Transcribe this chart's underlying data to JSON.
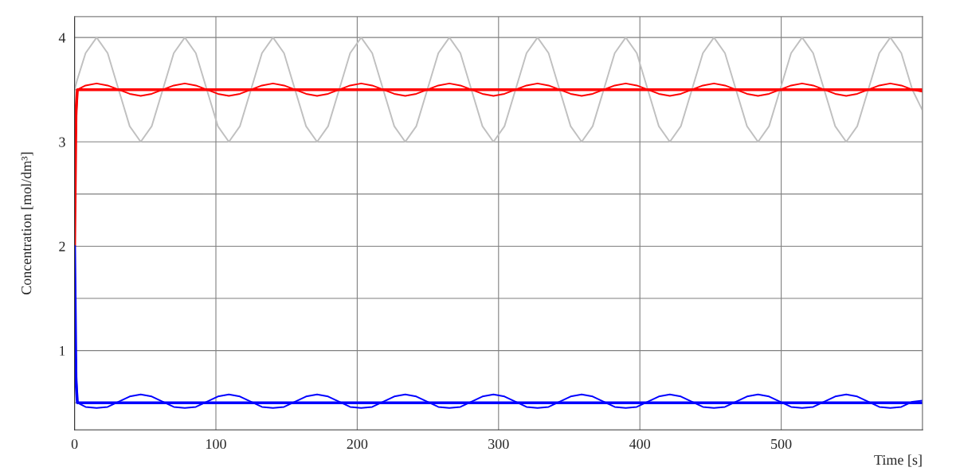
{
  "chart_data": {
    "type": "line",
    "xlabel": "Time [s]",
    "ylabel": "Concentration [mol/dm³]",
    "xlim": [
      0,
      600
    ],
    "xticks": [
      0,
      100,
      200,
      300,
      400,
      500,
      {
        "value": 600,
        "label": null
      }
    ],
    "ylim": [
      0.24,
      4.2
    ],
    "yticks": [
      {
        "value": 0.5,
        "label": null
      },
      1,
      {
        "value": 1.5,
        "label": null
      },
      2,
      {
        "value": 2.5,
        "label": null
      },
      3,
      {
        "value": 3.5,
        "label": null
      },
      4
    ],
    "grid": true,
    "x": [
      0,
      2,
      7.8,
      15.6,
      23.4,
      31.2,
      39,
      46.8,
      54.6,
      62.4,
      70.2,
      78,
      85.8,
      93.6,
      101.4,
      109.2,
      117,
      124.8,
      132.6,
      140.4,
      148.2,
      156,
      163.8,
      171.6,
      179.4,
      187.2,
      195,
      202.8,
      210.6,
      218.4,
      226.2,
      234,
      241.8,
      249.6,
      257.4,
      265.2,
      273,
      280.8,
      288.6,
      296.4,
      304.2,
      312,
      319.8,
      327.6,
      335.4,
      343.2,
      351,
      358.8,
      366.6,
      374.4,
      382.2,
      390,
      397.8,
      405.6,
      413.4,
      421.2,
      429,
      436.8,
      444.6,
      452.4,
      460.2,
      468,
      475.8,
      483.6,
      491.4,
      499.2,
      507,
      514.8,
      522.6,
      530.4,
      538.2,
      546,
      553.8,
      561.6,
      569.4,
      577.2,
      585,
      592.8,
      600
    ],
    "series": [
      {
        "color": "#c0c0c0",
        "values": [
          3.5,
          3.6,
          3.85,
          4,
          3.85,
          3.5,
          3.15,
          3,
          3.15,
          3.5,
          3.85,
          4,
          3.85,
          3.5,
          3.15,
          3,
          3.15,
          3.5,
          3.85,
          4,
          3.85,
          3.5,
          3.15,
          3,
          3.15,
          3.5,
          3.85,
          4,
          3.85,
          3.5,
          3.15,
          3,
          3.15,
          3.5,
          3.85,
          4,
          3.85,
          3.5,
          3.15,
          3,
          3.15,
          3.5,
          3.85,
          4,
          3.85,
          3.5,
          3.15,
          3,
          3.15,
          3.5,
          3.85,
          4,
          3.85,
          3.5,
          3.15,
          3,
          3.15,
          3.5,
          3.85,
          4,
          3.85,
          3.5,
          3.15,
          3,
          3.15,
          3.5,
          3.85,
          4,
          3.85,
          3.5,
          3.15,
          3,
          3.15,
          3.5,
          3.85,
          4,
          3.85,
          3.5,
          3.3
        ]
      },
      {
        "color": "#ff0000",
        "values": [
          2.7,
          3.5,
          3.54,
          3.56,
          3.54,
          3.5,
          3.46,
          3.44,
          3.46,
          3.5,
          3.54,
          3.56,
          3.54,
          3.5,
          3.46,
          3.44,
          3.46,
          3.5,
          3.54,
          3.56,
          3.54,
          3.5,
          3.46,
          3.44,
          3.46,
          3.5,
          3.54,
          3.56,
          3.54,
          3.5,
          3.46,
          3.44,
          3.46,
          3.5,
          3.54,
          3.56,
          3.54,
          3.5,
          3.46,
          3.44,
          3.46,
          3.5,
          3.54,
          3.56,
          3.54,
          3.5,
          3.46,
          3.44,
          3.46,
          3.5,
          3.54,
          3.56,
          3.54,
          3.5,
          3.46,
          3.44,
          3.46,
          3.5,
          3.54,
          3.56,
          3.54,
          3.5,
          3.46,
          3.44,
          3.46,
          3.5,
          3.54,
          3.56,
          3.54,
          3.5,
          3.46,
          3.44,
          3.46,
          3.5,
          3.54,
          3.56,
          3.54,
          3.5,
          3.48
        ]
      },
      {
        "color": "#0000ff",
        "values": [
          1.3,
          0.5,
          0.46,
          0.45,
          0.46,
          0.51,
          0.56,
          0.58,
          0.56,
          0.51,
          0.46,
          0.45,
          0.46,
          0.51,
          0.56,
          0.58,
          0.56,
          0.51,
          0.46,
          0.45,
          0.46,
          0.51,
          0.56,
          0.58,
          0.56,
          0.51,
          0.46,
          0.45,
          0.46,
          0.51,
          0.56,
          0.58,
          0.56,
          0.51,
          0.46,
          0.45,
          0.46,
          0.51,
          0.56,
          0.58,
          0.56,
          0.51,
          0.46,
          0.45,
          0.46,
          0.51,
          0.56,
          0.58,
          0.56,
          0.51,
          0.46,
          0.45,
          0.46,
          0.51,
          0.56,
          0.58,
          0.56,
          0.51,
          0.46,
          0.45,
          0.46,
          0.51,
          0.56,
          0.58,
          0.56,
          0.51,
          0.46,
          0.45,
          0.46,
          0.51,
          0.56,
          0.58,
          0.56,
          0.51,
          0.46,
          0.45,
          0.46,
          0.51,
          0.52
        ]
      },
      {
        "color": "#ff0000",
        "x": [
          0,
          1,
          2,
          600
        ],
        "values": [
          2.0,
          3.3,
          3.5,
          3.5
        ]
      },
      {
        "color": "#0000ff",
        "x": [
          0,
          1,
          2,
          600
        ],
        "values": [
          2.0,
          0.7,
          0.5,
          0.5
        ]
      }
    ]
  }
}
